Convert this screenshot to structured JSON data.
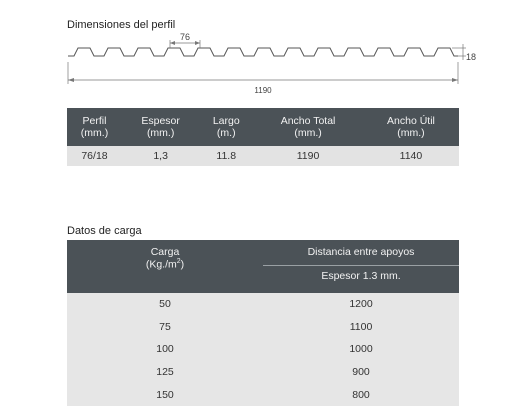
{
  "profile": {
    "title": "Dimensiones del perfil",
    "pitch_label": "76",
    "height_label": "18",
    "width_label": "1190"
  },
  "spec_table": {
    "headers": [
      {
        "name": "Perfil",
        "unit": "(mm.)"
      },
      {
        "name": "Espesor",
        "unit": "(mm.)"
      },
      {
        "name": "Largo",
        "unit": "(m.)"
      },
      {
        "name": "Ancho Total",
        "unit": "(mm.)"
      },
      {
        "name": "Ancho Útil",
        "unit": "(mm.)"
      }
    ],
    "row": [
      "76/18",
      "1,3",
      "11.8",
      "1190",
      "1140"
    ]
  },
  "load": {
    "title": "Datos de carga",
    "carga_label": "Carga",
    "carga_unit": "(Kg./m",
    "carga_unit_sup": "2",
    "carga_unit_end": ")",
    "distance_label": "Distancia entre apoyos",
    "thickness_label": "Espesor 1.3 mm.",
    "rows": [
      {
        "carga": "50",
        "distancia": "1200"
      },
      {
        "carga": "75",
        "distancia": "1100"
      },
      {
        "carga": "100",
        "distancia": "1000"
      },
      {
        "carga": "125",
        "distancia": "900"
      },
      {
        "carga": "150",
        "distancia": "800"
      }
    ]
  }
}
